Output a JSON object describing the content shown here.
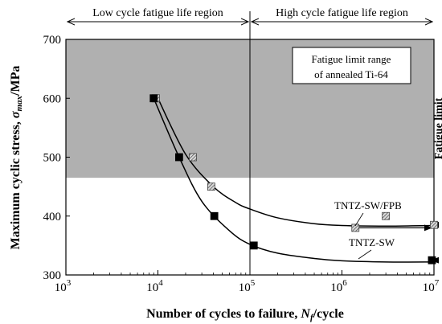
{
  "chart_data": {
    "type": "scatter",
    "xscale": "log",
    "xlim": [
      1000,
      10000000
    ],
    "ylim": [
      300,
      700
    ],
    "x_ticks": [
      {
        "base": "10",
        "exp": "3",
        "value": 1000
      },
      {
        "base": "10",
        "exp": "4",
        "value": 10000
      },
      {
        "base": "10",
        "exp": "5",
        "value": 100000
      },
      {
        "base": "10",
        "exp": "6",
        "value": 1000000
      },
      {
        "base": "10",
        "exp": "7",
        "value": 10000000
      }
    ],
    "y_ticks": [
      "300",
      "400",
      "500",
      "600",
      "700"
    ],
    "xlabel": {
      "main": "Number of cycles to failure, ",
      "var": "N",
      "sub": "f",
      "tail": "/cycle"
    },
    "ylabel": {
      "main": "Maximum cyclic stress, ",
      "var": "σ",
      "sub": "max",
      "tail": "/MPa"
    },
    "regions": {
      "low": "Low cycle fatigue life region",
      "high": "High cycle fatigue life region",
      "boundary_x": 100000
    },
    "fatigue_limit_band": {
      "label_line1": "Fatigue limit range",
      "label_line2": "of annealed Ti-64",
      "y_from": 465,
      "y_to": 700,
      "color": "#b0b0b0"
    },
    "fatigue_limit_line": {
      "label": "Fatigue limit",
      "x": 10000000
    },
    "series": [
      {
        "name": "TNTZ-SW/FPB",
        "marker": "hatched-square",
        "points": [
          {
            "x": 9500,
            "y": 600
          },
          {
            "x": 24000,
            "y": 500
          },
          {
            "x": 38000,
            "y": 450
          },
          {
            "x": 1400000,
            "y": 380,
            "runout": true
          },
          {
            "x": 3000000,
            "y": 400
          },
          {
            "x": 10000000,
            "y": 385,
            "runout": true
          }
        ],
        "fit": [
          {
            "x": 10000,
            "y": 600
          },
          {
            "x": 20000,
            "y": 505
          },
          {
            "x": 40000,
            "y": 450
          },
          {
            "x": 70000,
            "y": 423
          },
          {
            "x": 100000,
            "y": 412
          },
          {
            "x": 200000,
            "y": 397
          },
          {
            "x": 500000,
            "y": 387
          },
          {
            "x": 1000000,
            "y": 384
          },
          {
            "x": 3000000,
            "y": 383
          },
          {
            "x": 10000000,
            "y": 384
          }
        ]
      },
      {
        "name": "TNTZ-SW",
        "marker": "filled-square",
        "points": [
          {
            "x": 9000,
            "y": 600
          },
          {
            "x": 17000,
            "y": 500
          },
          {
            "x": 41000,
            "y": 400
          },
          {
            "x": 110000,
            "y": 350
          },
          {
            "x": 9500000,
            "y": 325,
            "runout": true
          }
        ],
        "fit": [
          {
            "x": 9000,
            "y": 600
          },
          {
            "x": 17000,
            "y": 500
          },
          {
            "x": 30000,
            "y": 425
          },
          {
            "x": 60000,
            "y": 375
          },
          {
            "x": 100000,
            "y": 352
          },
          {
            "x": 200000,
            "y": 337
          },
          {
            "x": 500000,
            "y": 328
          },
          {
            "x": 1000000,
            "y": 324
          },
          {
            "x": 3000000,
            "y": 322
          },
          {
            "x": 10000000,
            "y": 322
          }
        ]
      }
    ],
    "series_labels": {
      "fpb": "TNTZ-SW/FPB",
      "sw": "TNTZ-SW"
    }
  }
}
